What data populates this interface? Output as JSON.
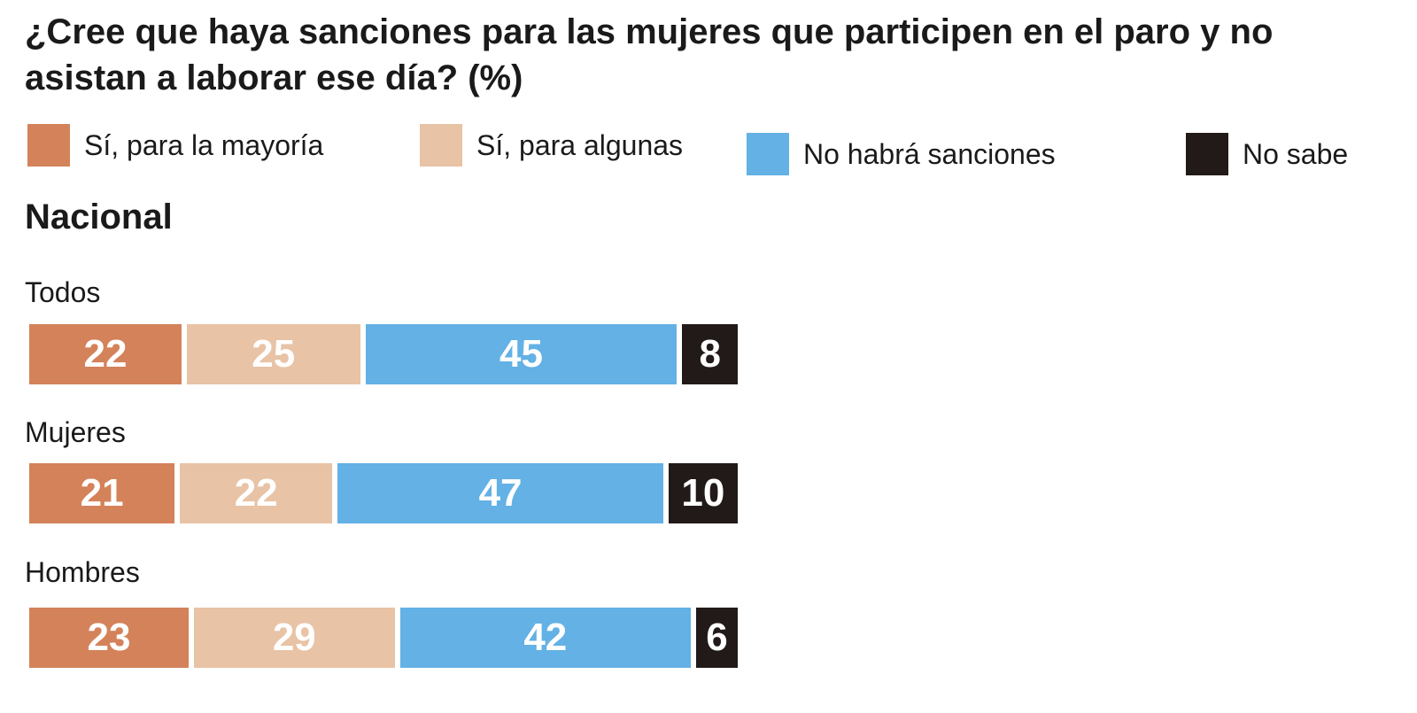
{
  "chart_data": {
    "type": "bar",
    "orientation": "horizontal",
    "stacked": true,
    "title": "¿Cree que haya sanciones para las mujeres que participen en el paro y no asistan a laborar ese día? (%)",
    "section": "Nacional",
    "categories": [
      "Todos",
      "Mujeres",
      "Hombres"
    ],
    "series": [
      {
        "name": "Sí, para la mayoría",
        "color": "#d4825a",
        "values": [
          22,
          21,
          23
        ]
      },
      {
        "name": "Sí, para algunas",
        "color": "#e8c3a5",
        "values": [
          25,
          22,
          29
        ]
      },
      {
        "name": "No habrá sanciones",
        "color": "#63b1e5",
        "values": [
          45,
          47,
          42
        ]
      },
      {
        "name": "No sabe",
        "color": "#211a18",
        "values": [
          8,
          10,
          6
        ]
      }
    ],
    "legend_position": "top",
    "grid": false
  }
}
